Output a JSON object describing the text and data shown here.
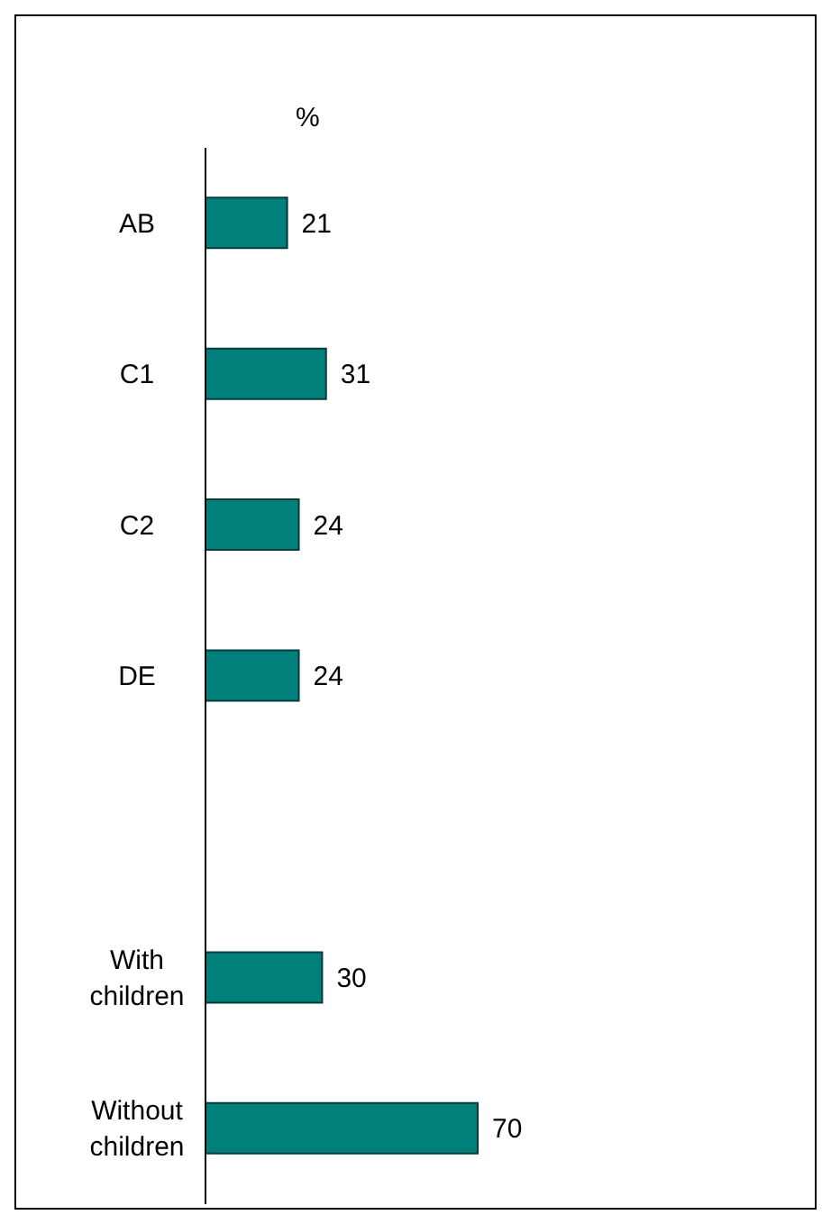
{
  "chart_data": {
    "type": "bar",
    "orientation": "horizontal",
    "xlabel": "%",
    "categories": [
      "AB",
      "C1",
      "C2",
      "DE",
      null,
      "With children",
      "Without children"
    ],
    "values": [
      21,
      31,
      24,
      24,
      null,
      30,
      70
    ],
    "color": "#007f7b",
    "data_labels": true
  }
}
